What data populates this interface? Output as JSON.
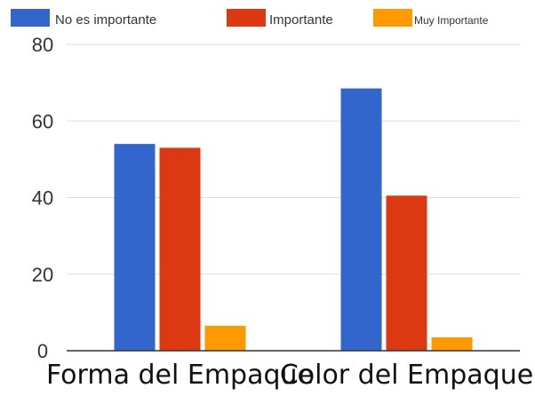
{
  "chart_data": {
    "type": "bar",
    "categories": [
      "Forma del Empaque",
      "Color del Empaque"
    ],
    "series": [
      {
        "name": "No es importante",
        "values": [
          54,
          68.5
        ]
      },
      {
        "name": "Importante",
        "values": [
          53,
          40.5
        ]
      },
      {
        "name": "Muy Importante",
        "values": [
          6.5,
          3.5
        ]
      }
    ],
    "ylim": [
      0,
      80
    ],
    "yticks": [
      0,
      20,
      40,
      60,
      80
    ],
    "grid": true,
    "legend_position": "top",
    "colors": [
      "#3366cc",
      "#dc3912",
      "#ff9900"
    ],
    "gridline_color": "#dddddd",
    "axis_color": "#333333",
    "title": "",
    "xlabel": "",
    "ylabel": ""
  }
}
